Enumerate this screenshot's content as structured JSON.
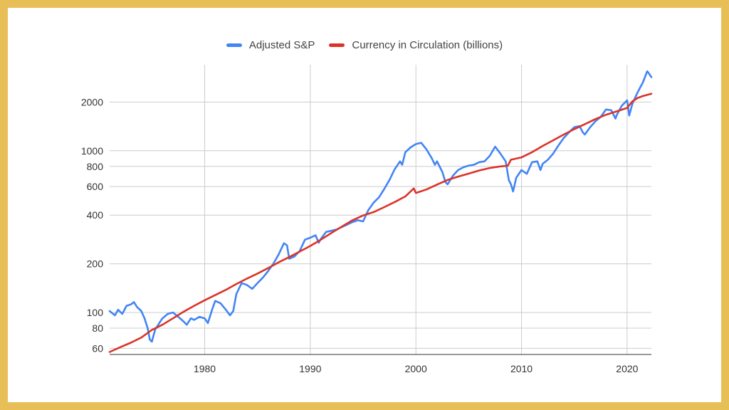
{
  "colors": {
    "border": "#e8be57",
    "background": "#ffffff",
    "grid": "#cccccc",
    "sp": "#4285f4",
    "currency": "#db3328"
  },
  "legend": [
    {
      "label": "Adjusted S&P",
      "color": "#4285f4"
    },
    {
      "label": "Currency in Circulation (billions)",
      "color": "#db3328"
    }
  ],
  "chart_data": {
    "type": "line",
    "title": "",
    "xlabel": "",
    "ylabel": "",
    "y_scale": "log",
    "xlim": [
      1971,
      2022.3
    ],
    "ylim": [
      55,
      3400
    ],
    "x_ticks": [
      1980,
      1990,
      2000,
      2010,
      2020
    ],
    "y_ticks": [
      60,
      80,
      100,
      200,
      400,
      600,
      800,
      1000,
      2000
    ],
    "grid": true,
    "legend_position": "top",
    "series": [
      {
        "name": "Adjusted S&P",
        "color": "#4285f4",
        "points": [
          [
            1971.0,
            102
          ],
          [
            1971.5,
            96
          ],
          [
            1971.8,
            104
          ],
          [
            1972.2,
            98
          ],
          [
            1972.6,
            110
          ],
          [
            1973.0,
            112
          ],
          [
            1973.3,
            116
          ],
          [
            1973.6,
            108
          ],
          [
            1974.0,
            102
          ],
          [
            1974.3,
            92
          ],
          [
            1974.6,
            80
          ],
          [
            1974.8,
            68
          ],
          [
            1975.0,
            66
          ],
          [
            1975.3,
            78
          ],
          [
            1975.7,
            86
          ],
          [
            1976.0,
            92
          ],
          [
            1976.5,
            98
          ],
          [
            1977.0,
            100
          ],
          [
            1977.5,
            94
          ],
          [
            1978.0,
            88
          ],
          [
            1978.3,
            84
          ],
          [
            1978.7,
            92
          ],
          [
            1979.0,
            90
          ],
          [
            1979.5,
            94
          ],
          [
            1980.0,
            92
          ],
          [
            1980.3,
            86
          ],
          [
            1980.7,
            104
          ],
          [
            1981.0,
            118
          ],
          [
            1981.5,
            114
          ],
          [
            1982.0,
            104
          ],
          [
            1982.4,
            96
          ],
          [
            1982.7,
            102
          ],
          [
            1983.0,
            130
          ],
          [
            1983.5,
            152
          ],
          [
            1984.0,
            148
          ],
          [
            1984.5,
            140
          ],
          [
            1985.0,
            152
          ],
          [
            1985.5,
            164
          ],
          [
            1986.0,
            180
          ],
          [
            1986.5,
            200
          ],
          [
            1987.0,
            228
          ],
          [
            1987.5,
            268
          ],
          [
            1987.8,
            260
          ],
          [
            1988.0,
            215
          ],
          [
            1988.5,
            222
          ],
          [
            1989.0,
            240
          ],
          [
            1989.5,
            282
          ],
          [
            1990.0,
            290
          ],
          [
            1990.5,
            300
          ],
          [
            1990.8,
            270
          ],
          [
            1991.0,
            285
          ],
          [
            1991.5,
            315
          ],
          [
            1992.0,
            320
          ],
          [
            1992.5,
            326
          ],
          [
            1993.0,
            338
          ],
          [
            1993.5,
            350
          ],
          [
            1994.0,
            362
          ],
          [
            1994.5,
            372
          ],
          [
            1995.0,
            366
          ],
          [
            1995.5,
            430
          ],
          [
            1996.0,
            478
          ],
          [
            1996.5,
            515
          ],
          [
            1997.0,
            580
          ],
          [
            1997.5,
            660
          ],
          [
            1998.0,
            770
          ],
          [
            1998.5,
            860
          ],
          [
            1998.7,
            820
          ],
          [
            1999.0,
            980
          ],
          [
            1999.5,
            1050
          ],
          [
            2000.0,
            1100
          ],
          [
            2000.5,
            1120
          ],
          [
            2001.0,
            1020
          ],
          [
            2001.5,
            900
          ],
          [
            2001.8,
            820
          ],
          [
            2002.0,
            860
          ],
          [
            2002.5,
            740
          ],
          [
            2002.8,
            640
          ],
          [
            2003.0,
            620
          ],
          [
            2003.5,
            700
          ],
          [
            2004.0,
            760
          ],
          [
            2004.5,
            790
          ],
          [
            2005.0,
            810
          ],
          [
            2005.5,
            820
          ],
          [
            2006.0,
            850
          ],
          [
            2006.5,
            860
          ],
          [
            2007.0,
            930
          ],
          [
            2007.5,
            1060
          ],
          [
            2008.0,
            960
          ],
          [
            2008.5,
            860
          ],
          [
            2008.8,
            660
          ],
          [
            2009.0,
            620
          ],
          [
            2009.2,
            560
          ],
          [
            2009.5,
            680
          ],
          [
            2010.0,
            760
          ],
          [
            2010.5,
            720
          ],
          [
            2011.0,
            850
          ],
          [
            2011.5,
            860
          ],
          [
            2011.8,
            760
          ],
          [
            2012.0,
            830
          ],
          [
            2012.5,
            880
          ],
          [
            2013.0,
            960
          ],
          [
            2013.5,
            1080
          ],
          [
            2014.0,
            1200
          ],
          [
            2014.5,
            1300
          ],
          [
            2015.0,
            1400
          ],
          [
            2015.5,
            1420
          ],
          [
            2015.8,
            1300
          ],
          [
            2016.0,
            1260
          ],
          [
            2016.5,
            1400
          ],
          [
            2017.0,
            1520
          ],
          [
            2017.5,
            1620
          ],
          [
            2018.0,
            1800
          ],
          [
            2018.5,
            1780
          ],
          [
            2018.9,
            1580
          ],
          [
            2019.0,
            1650
          ],
          [
            2019.5,
            1900
          ],
          [
            2020.0,
            2050
          ],
          [
            2020.2,
            1650
          ],
          [
            2020.5,
            1950
          ],
          [
            2020.8,
            2150
          ],
          [
            2021.0,
            2300
          ],
          [
            2021.5,
            2650
          ],
          [
            2021.9,
            3100
          ],
          [
            2022.0,
            3050
          ],
          [
            2022.3,
            2850
          ]
        ]
      },
      {
        "name": "Currency in Circulation (billions)",
        "color": "#db3328",
        "points": [
          [
            1971.0,
            57
          ],
          [
            1972.0,
            61
          ],
          [
            1973.0,
            65
          ],
          [
            1974.0,
            70
          ],
          [
            1975.0,
            78
          ],
          [
            1976.0,
            84
          ],
          [
            1977.0,
            92
          ],
          [
            1978.0,
            101
          ],
          [
            1979.0,
            110
          ],
          [
            1980.0,
            119
          ],
          [
            1981.0,
            128
          ],
          [
            1982.0,
            138
          ],
          [
            1983.0,
            150
          ],
          [
            1984.0,
            162
          ],
          [
            1985.0,
            174
          ],
          [
            1986.0,
            188
          ],
          [
            1987.0,
            204
          ],
          [
            1988.0,
            220
          ],
          [
            1989.0,
            238
          ],
          [
            1990.0,
            258
          ],
          [
            1991.0,
            282
          ],
          [
            1992.0,
            310
          ],
          [
            1993.0,
            340
          ],
          [
            1994.0,
            372
          ],
          [
            1995.0,
            398
          ],
          [
            1996.0,
            418
          ],
          [
            1997.0,
            448
          ],
          [
            1998.0,
            482
          ],
          [
            1999.0,
            522
          ],
          [
            1999.8,
            585
          ],
          [
            2000.0,
            548
          ],
          [
            2001.0,
            576
          ],
          [
            2002.0,
            618
          ],
          [
            2003.0,
            660
          ],
          [
            2004.0,
            692
          ],
          [
            2005.0,
            722
          ],
          [
            2006.0,
            755
          ],
          [
            2007.0,
            782
          ],
          [
            2008.0,
            800
          ],
          [
            2008.7,
            808
          ],
          [
            2009.0,
            880
          ],
          [
            2010.0,
            910
          ],
          [
            2011.0,
            980
          ],
          [
            2012.0,
            1070
          ],
          [
            2013.0,
            1160
          ],
          [
            2014.0,
            1260
          ],
          [
            2015.0,
            1360
          ],
          [
            2016.0,
            1460
          ],
          [
            2017.0,
            1570
          ],
          [
            2018.0,
            1670
          ],
          [
            2019.0,
            1750
          ],
          [
            2020.0,
            1840
          ],
          [
            2020.5,
            2020
          ],
          [
            2021.0,
            2120
          ],
          [
            2021.5,
            2180
          ],
          [
            2022.3,
            2250
          ]
        ]
      }
    ]
  }
}
